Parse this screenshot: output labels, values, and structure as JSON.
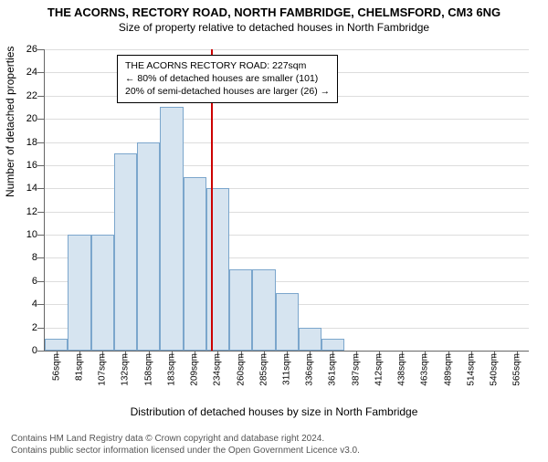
{
  "chart": {
    "type": "histogram",
    "title": "THE ACORNS, RECTORY ROAD, NORTH FAMBRIDGE, CHELMSFORD, CM3 6NG",
    "subtitle": "Size of property relative to detached houses in North Fambridge",
    "yaxis_label": "Number of detached properties",
    "xaxis_label": "Distribution of detached houses by size in North Fambridge",
    "ylim": [
      0,
      26
    ],
    "ytick_step": 2,
    "yticks": [
      0,
      2,
      4,
      6,
      8,
      10,
      12,
      14,
      16,
      18,
      20,
      22,
      24,
      26
    ],
    "xmin": 43,
    "xmax": 578,
    "xticks": [
      56,
      81,
      107,
      132,
      158,
      183,
      209,
      234,
      260,
      285,
      311,
      336,
      361,
      387,
      412,
      438,
      463,
      489,
      514,
      540,
      565
    ],
    "xtick_suffix": "sqm",
    "bar_width_sqm": 25.5,
    "bar_starts": [
      43,
      68.5,
      94,
      119.5,
      145,
      170.5,
      196,
      221.5,
      247,
      272.5,
      298,
      323.5,
      349
    ],
    "bar_values": [
      1,
      10,
      10,
      17,
      18,
      21,
      15,
      14,
      7,
      7,
      5,
      2,
      1
    ],
    "refline_x": 227,
    "annotation": {
      "line1": "THE ACORNS RECTORY ROAD: 227sqm",
      "line2": "← 80% of detached houses are smaller (101)",
      "line3": "20% of semi-detached houses are larger (26) →"
    },
    "colors": {
      "bar_fill": "#d6e4f0",
      "bar_border": "#7ba6cc",
      "grid": "#dddddd",
      "axis": "#666666",
      "refline": "#cc0000",
      "background": "#ffffff",
      "text": "#000000",
      "footer_text": "#555555"
    },
    "font_family": "Arial, Helvetica, sans-serif",
    "title_fontsize": 13,
    "subtitle_fontsize": 12,
    "axis_label_fontsize": 12,
    "tick_fontsize": 11
  },
  "footer": {
    "line1": "Contains HM Land Registry data © Crown copyright and database right 2024.",
    "line2": "Contains public sector information licensed under the Open Government Licence v3.0."
  }
}
